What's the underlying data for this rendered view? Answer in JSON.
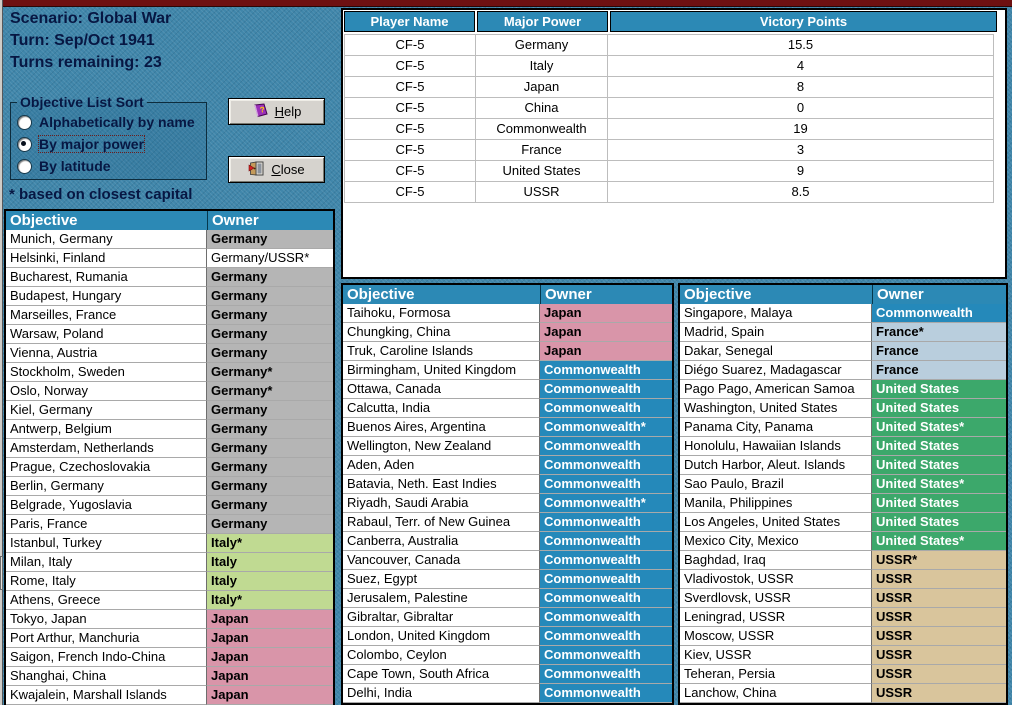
{
  "info": {
    "scenario": "Scenario: Global War",
    "turn": "Turn: Sep/Oct 1941",
    "turns_remaining": "Turns remaining: 23"
  },
  "sort_box": {
    "legend": "Objective List Sort",
    "options": [
      {
        "label": "Alphabetically by name",
        "selected": false
      },
      {
        "label": "By major power",
        "selected": true
      },
      {
        "label": "By latitude",
        "selected": false
      }
    ]
  },
  "footnote": "* based on closest capital",
  "buttons": {
    "help_label": "Help",
    "close_label": "Close"
  },
  "vp_table": {
    "headers": [
      "Player Name",
      "Major Power",
      "Victory Points"
    ],
    "rows": [
      [
        "CF-5",
        "Germany",
        "15.5"
      ],
      [
        "CF-5",
        "Italy",
        "4"
      ],
      [
        "CF-5",
        "Japan",
        "8"
      ],
      [
        "CF-5",
        "China",
        "0"
      ],
      [
        "CF-5",
        "Commonwealth",
        "19"
      ],
      [
        "CF-5",
        "France",
        "3"
      ],
      [
        "CF-5",
        "United States",
        "9"
      ],
      [
        "CF-5",
        "USSR",
        "8.5"
      ]
    ]
  },
  "objective_tables": {
    "headers": [
      "Objective",
      "Owner"
    ],
    "left": [
      {
        "objective": "Munich, Germany",
        "owner": "Germany",
        "style": "germany"
      },
      {
        "objective": "Helsinki, Finland",
        "owner": "Germany/USSR*",
        "style": "contested"
      },
      {
        "objective": "Bucharest, Rumania",
        "owner": "Germany",
        "style": "germany"
      },
      {
        "objective": "Budapest, Hungary",
        "owner": "Germany",
        "style": "germany"
      },
      {
        "objective": "Marseilles, France",
        "owner": "Germany",
        "style": "germany"
      },
      {
        "objective": "Warsaw, Poland",
        "owner": "Germany",
        "style": "germany"
      },
      {
        "objective": "Vienna, Austria",
        "owner": "Germany",
        "style": "germany"
      },
      {
        "objective": "Stockholm, Sweden",
        "owner": "Germany*",
        "style": "germany"
      },
      {
        "objective": "Oslo, Norway",
        "owner": "Germany*",
        "style": "germany"
      },
      {
        "objective": "Kiel, Germany",
        "owner": "Germany",
        "style": "germany"
      },
      {
        "objective": "Antwerp, Belgium",
        "owner": "Germany",
        "style": "germany"
      },
      {
        "objective": "Amsterdam, Netherlands",
        "owner": "Germany",
        "style": "germany"
      },
      {
        "objective": "Prague, Czechoslovakia",
        "owner": "Germany",
        "style": "germany"
      },
      {
        "objective": "Berlin, Germany",
        "owner": "Germany",
        "style": "germany"
      },
      {
        "objective": "Belgrade, Yugoslavia",
        "owner": "Germany",
        "style": "germany"
      },
      {
        "objective": "Paris, France",
        "owner": "Germany",
        "style": "germany"
      },
      {
        "objective": "Istanbul, Turkey",
        "owner": "Italy*",
        "style": "italy"
      },
      {
        "objective": "Milan, Italy",
        "owner": "Italy",
        "style": "italy"
      },
      {
        "objective": "Rome, Italy",
        "owner": "Italy",
        "style": "italy"
      },
      {
        "objective": "Athens, Greece",
        "owner": "Italy*",
        "style": "italy"
      },
      {
        "objective": "Tokyo, Japan",
        "owner": "Japan",
        "style": "japan"
      },
      {
        "objective": "Port Arthur, Manchuria",
        "owner": "Japan",
        "style": "japan"
      },
      {
        "objective": "Saigon, French Indo-China",
        "owner": "Japan",
        "style": "japan"
      },
      {
        "objective": "Shanghai, China",
        "owner": "Japan",
        "style": "japan"
      },
      {
        "objective": "Kwajalein, Marshall Islands",
        "owner": "Japan",
        "style": "japan"
      }
    ],
    "middle": [
      {
        "objective": "Taihoku, Formosa",
        "owner": "Japan",
        "style": "japan"
      },
      {
        "objective": "Chungking, China",
        "owner": "Japan",
        "style": "japan"
      },
      {
        "objective": "Truk, Caroline Islands",
        "owner": "Japan",
        "style": "japan"
      },
      {
        "objective": "Birmingham, United Kingdom",
        "owner": "Commonwealth",
        "style": "commonwealth"
      },
      {
        "objective": "Ottawa, Canada",
        "owner": "Commonwealth",
        "style": "commonwealth"
      },
      {
        "objective": "Calcutta, India",
        "owner": "Commonwealth",
        "style": "commonwealth"
      },
      {
        "objective": "Buenos Aires, Argentina",
        "owner": "Commonwealth*",
        "style": "commonwealth"
      },
      {
        "objective": "Wellington, New Zealand",
        "owner": "Commonwealth",
        "style": "commonwealth"
      },
      {
        "objective": "Aden, Aden",
        "owner": "Commonwealth",
        "style": "commonwealth"
      },
      {
        "objective": "Batavia, Neth. East Indies",
        "owner": "Commonwealth",
        "style": "commonwealth"
      },
      {
        "objective": "Riyadh, Saudi Arabia",
        "owner": "Commonwealth*",
        "style": "commonwealth"
      },
      {
        "objective": "Rabaul, Terr. of New Guinea",
        "owner": "Commonwealth",
        "style": "commonwealth"
      },
      {
        "objective": "Canberra, Australia",
        "owner": "Commonwealth",
        "style": "commonwealth"
      },
      {
        "objective": "Vancouver, Canada",
        "owner": "Commonwealth",
        "style": "commonwealth"
      },
      {
        "objective": "Suez, Egypt",
        "owner": "Commonwealth",
        "style": "commonwealth"
      },
      {
        "objective": "Jerusalem, Palestine",
        "owner": "Commonwealth",
        "style": "commonwealth"
      },
      {
        "objective": "Gibraltar, Gibraltar",
        "owner": "Commonwealth",
        "style": "commonwealth"
      },
      {
        "objective": "London, United Kingdom",
        "owner": "Commonwealth",
        "style": "commonwealth"
      },
      {
        "objective": "Colombo, Ceylon",
        "owner": "Commonwealth",
        "style": "commonwealth"
      },
      {
        "objective": "Cape Town, South Africa",
        "owner": "Commonwealth",
        "style": "commonwealth"
      },
      {
        "objective": "Delhi, India",
        "owner": "Commonwealth",
        "style": "commonwealth"
      }
    ],
    "right": [
      {
        "objective": "Singapore, Malaya",
        "owner": "Commonwealth",
        "style": "commonwealth"
      },
      {
        "objective": "Madrid, Spain",
        "owner": "France*",
        "style": "france"
      },
      {
        "objective": "Dakar, Senegal",
        "owner": "France",
        "style": "france"
      },
      {
        "objective": "Diégo Suarez, Madagascar",
        "owner": "France",
        "style": "france"
      },
      {
        "objective": "Pago Pago, American Samoa",
        "owner": "United States",
        "style": "us"
      },
      {
        "objective": "Washington, United States",
        "owner": "United States",
        "style": "us"
      },
      {
        "objective": "Panama City, Panama",
        "owner": "United States*",
        "style": "us"
      },
      {
        "objective": "Honolulu, Hawaiian Islands",
        "owner": "United States",
        "style": "us"
      },
      {
        "objective": "Dutch Harbor, Aleut. Islands",
        "owner": "United States",
        "style": "us"
      },
      {
        "objective": "Sao Paulo, Brazil",
        "owner": "United States*",
        "style": "us"
      },
      {
        "objective": "Manila, Philippines",
        "owner": "United States",
        "style": "us"
      },
      {
        "objective": "Los Angeles, United States",
        "owner": "United States",
        "style": "us"
      },
      {
        "objective": "Mexico City, Mexico",
        "owner": "United States*",
        "style": "us"
      },
      {
        "objective": "Baghdad, Iraq",
        "owner": "USSR*",
        "style": "ussr"
      },
      {
        "objective": "Vladivostok, USSR",
        "owner": "USSR",
        "style": "ussr"
      },
      {
        "objective": "Sverdlovsk, USSR",
        "owner": "USSR",
        "style": "ussr"
      },
      {
        "objective": "Leningrad, USSR",
        "owner": "USSR",
        "style": "ussr"
      },
      {
        "objective": "Moscow, USSR",
        "owner": "USSR",
        "style": "ussr"
      },
      {
        "objective": "Kiev, USSR",
        "owner": "USSR",
        "style": "ussr"
      },
      {
        "objective": "Teheran, Persia",
        "owner": "USSR",
        "style": "ussr"
      },
      {
        "objective": "Lanchow, China",
        "owner": "USSR",
        "style": "ussr"
      }
    ]
  },
  "owner_colors": {
    "germany": "#b5b5b5",
    "contested": "#ffffff",
    "italy": "#c0da92",
    "japan": "#d995a9",
    "commonwealth": "#2589ba",
    "france": "#b9cedd",
    "us": "#3ca86b",
    "ussr": "#d9c59c"
  },
  "theme": {
    "background_teal": "#4086aa",
    "table_header_teal": "#2c89b5",
    "navy_text": "#071743",
    "titlebar_maroon": "#6e1011",
    "button_face": "#d6d3ce"
  }
}
